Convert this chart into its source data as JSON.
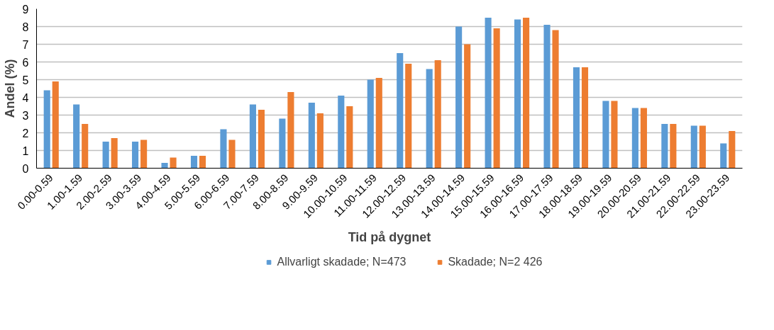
{
  "chart_data": {
    "type": "bar",
    "xlabel": "Tid på dygnet",
    "ylabel": "Andel (%)",
    "categories": [
      "0.00-0.59",
      "1.00-1.59",
      "2.00-2.59",
      "3.00-3.59",
      "4.00-4.59",
      "5.00-5.59",
      "6.00-6.59",
      "7.00-7.59",
      "8.00-8.59",
      "9.00-9.59",
      "10.00-10.59",
      "11.00-11.59",
      "12.00-12.59",
      "13.00-13.59",
      "14.00-14.59",
      "15.00-15.59",
      "16.00-16.59",
      "17.00-17.59",
      "18.00-18.59",
      "19.00-19.59",
      "20.00-20.59",
      "21.00-21.59",
      "22.00-22.59",
      "23.00-23.59"
    ],
    "series": [
      {
        "name": "Allvarligt skadade; N=473",
        "color": "#5b9bd5",
        "values": [
          4.4,
          3.6,
          1.5,
          1.5,
          0.3,
          0.7,
          2.2,
          3.6,
          2.8,
          3.7,
          4.1,
          5.0,
          6.5,
          5.6,
          8.0,
          8.5,
          8.4,
          8.1,
          5.7,
          3.8,
          3.4,
          2.5,
          2.4,
          1.4
        ]
      },
      {
        "name": "Skadade; N=2 426",
        "color": "#ed7d31",
        "values": [
          4.9,
          2.5,
          1.7,
          1.6,
          0.6,
          0.7,
          1.6,
          3.3,
          4.3,
          3.1,
          3.5,
          5.1,
          5.9,
          6.1,
          7.0,
          7.9,
          8.5,
          7.8,
          5.7,
          3.8,
          3.4,
          2.5,
          2.4,
          2.1
        ]
      }
    ],
    "ylim": [
      0,
      9
    ],
    "yticks": [
      0,
      1,
      2,
      3,
      4,
      5,
      6,
      7,
      8,
      9
    ],
    "grid": "y",
    "legend": "bottom"
  }
}
